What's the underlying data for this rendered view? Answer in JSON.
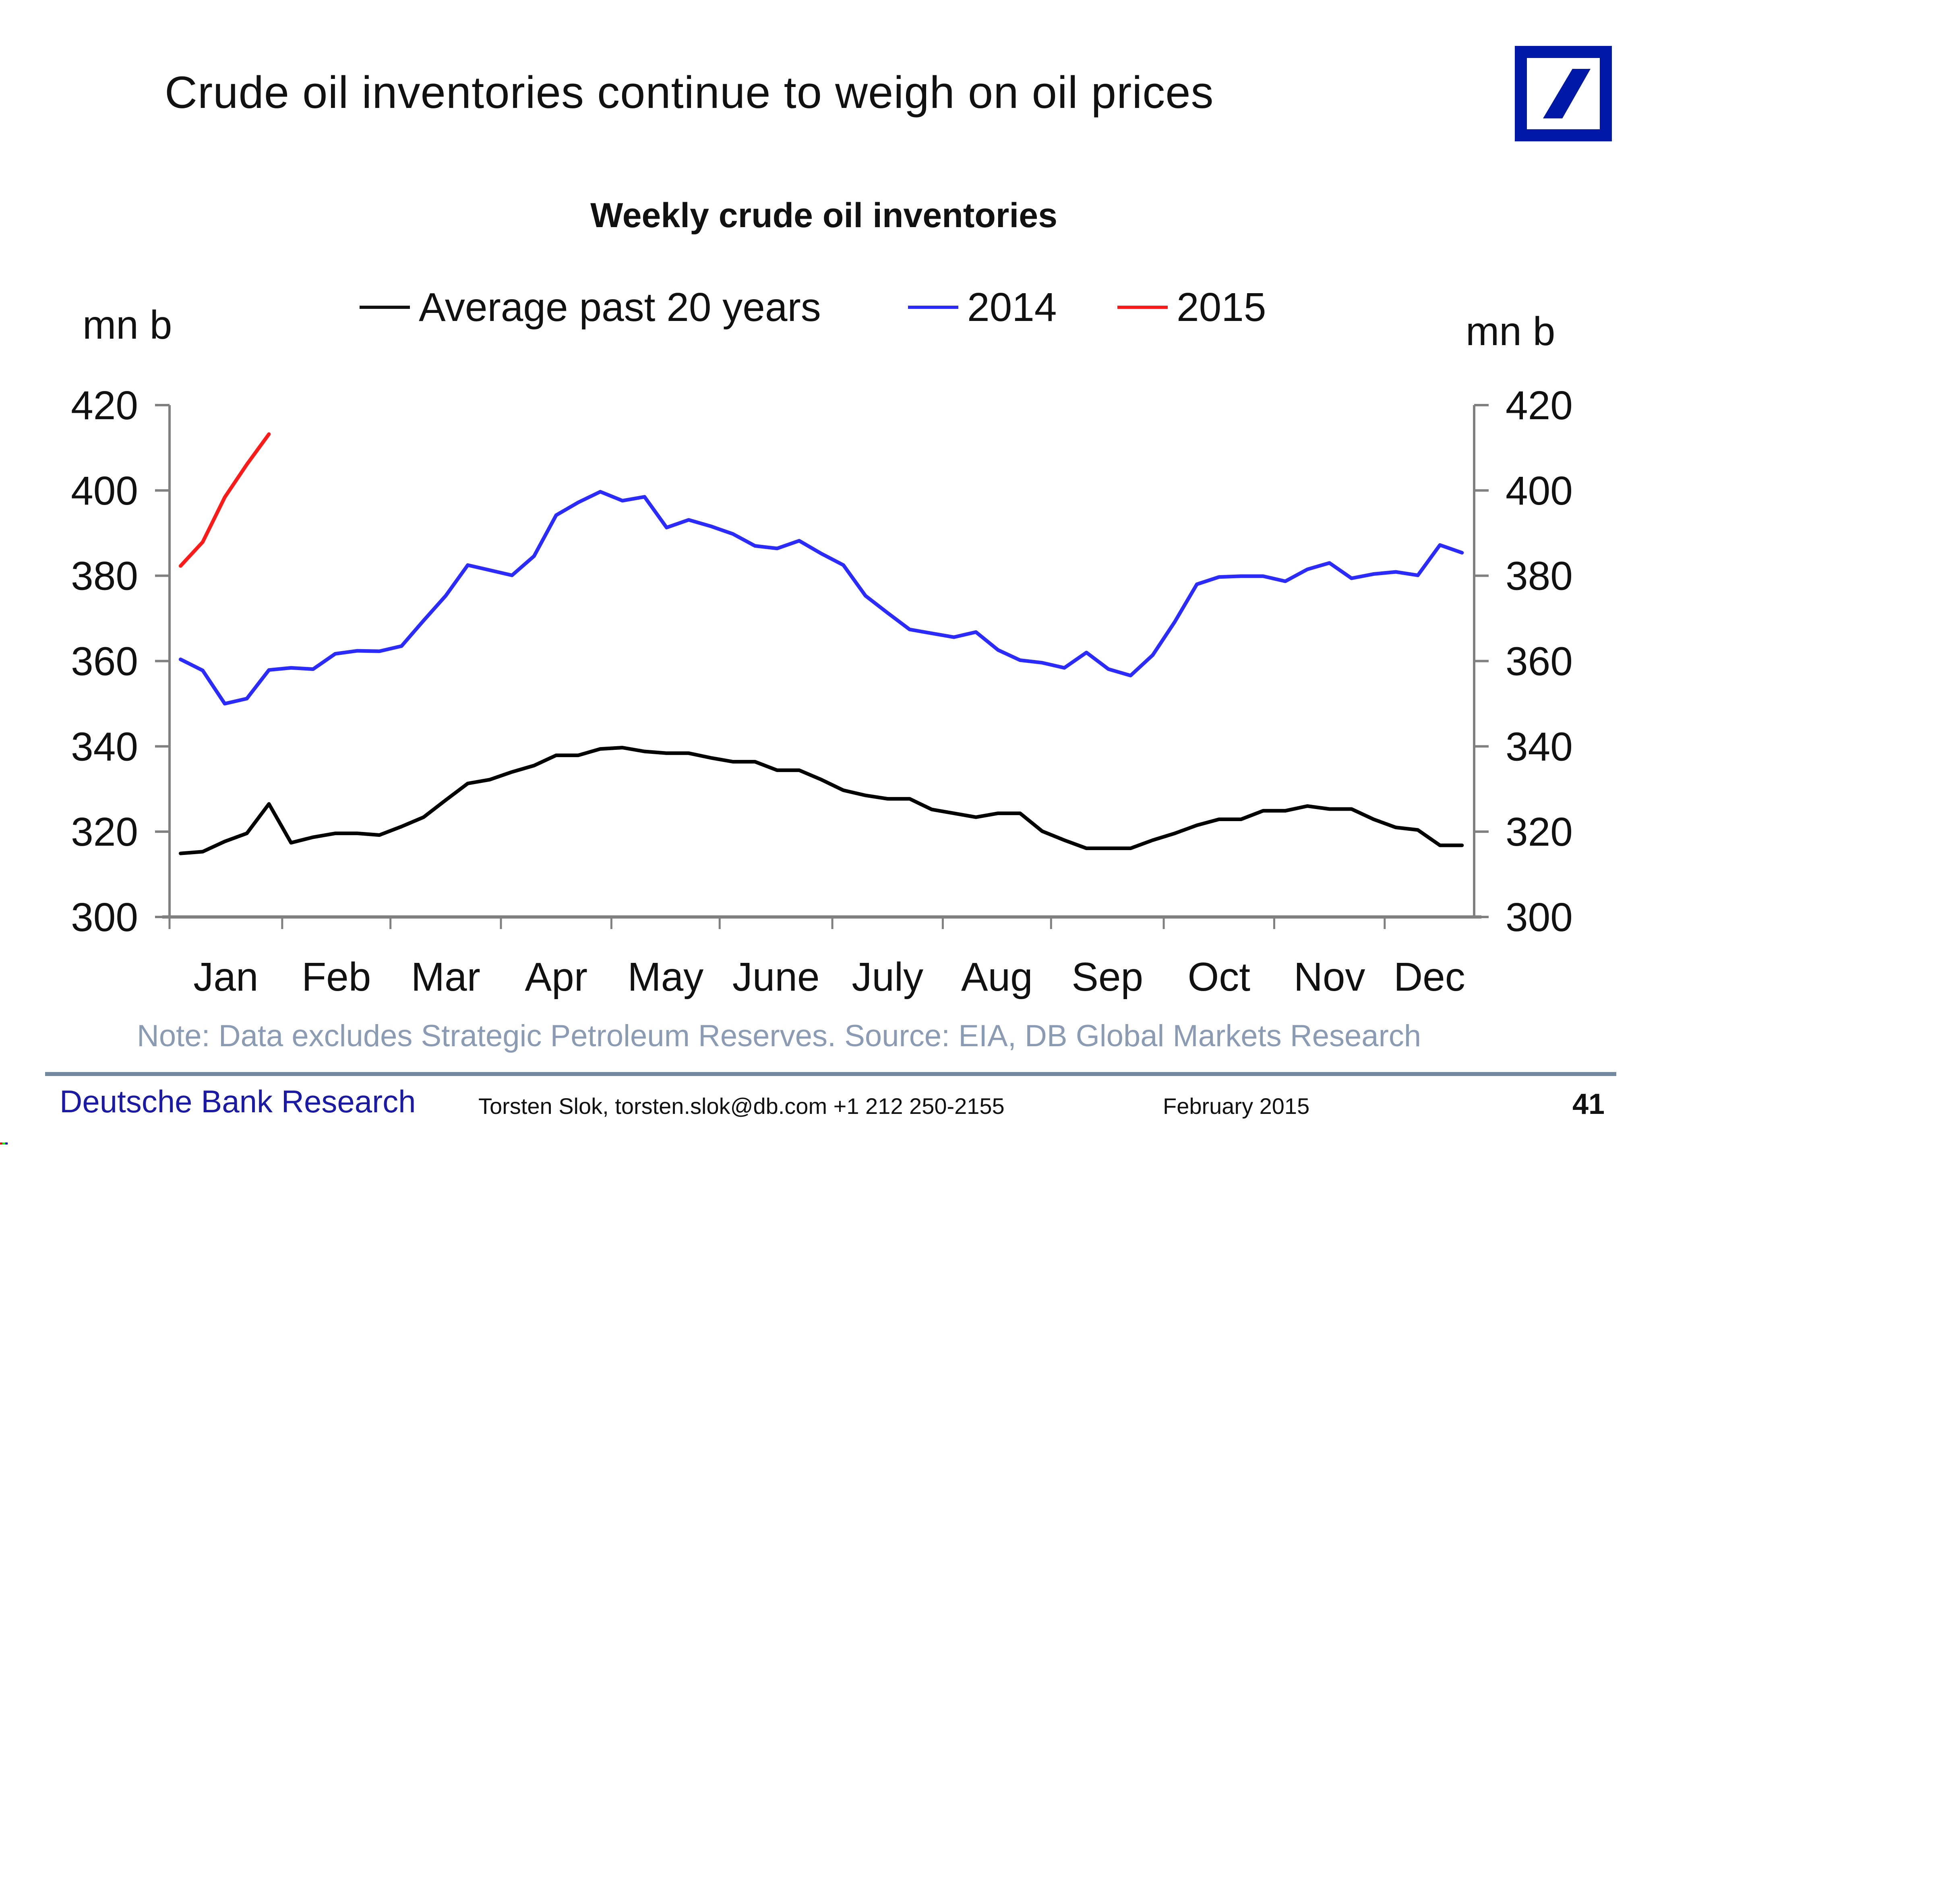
{
  "slide": {
    "title": "Crude oil inventories continue to weigh on oil prices",
    "logo_icon": "deutsche-bank-slash-logo",
    "brand_color": "#0018a8"
  },
  "chart_data": {
    "type": "line",
    "title": "Weekly crude oil inventories",
    "xlabel": "",
    "ylabel_left": "mn b",
    "ylabel_right": "mn b",
    "ylim": [
      300,
      420
    ],
    "yticks": [
      300,
      320,
      340,
      360,
      380,
      400,
      420
    ],
    "ytick_labels": [
      "300",
      "320",
      "340",
      "360",
      "380",
      "400",
      "420"
    ],
    "x_unit": "week index (0 = first week of January)",
    "x_domain": [
      -0.5,
      58.55
    ],
    "month_boundaries": [
      -0.5,
      4.6,
      9.5,
      14.5,
      19.5,
      24.4,
      29.5,
      34.5,
      39.4,
      44.5,
      49.5,
      54.5,
      58.55
    ],
    "categories": [
      "Jan",
      "Feb",
      "Mar",
      "Apr",
      "May",
      "June",
      "July",
      "Aug",
      "Sep",
      "Oct",
      "Nov",
      "Dec"
    ],
    "grid": false,
    "legend_position": "top-center",
    "series": [
      {
        "name": "Average past 20 years",
        "color": "#000000",
        "values": [
          314.9,
          315.3,
          317.7,
          319.6,
          326.5,
          317.4,
          318.7,
          319.6,
          319.6,
          319.2,
          321.2,
          323.4,
          327.4,
          331.3,
          332.2,
          334.0,
          335.5,
          337.9,
          337.9,
          339.4,
          339.7,
          338.8,
          338.4,
          338.4,
          337.3,
          336.4,
          336.4,
          334.4,
          334.4,
          332.2,
          329.7,
          328.5,
          327.7,
          327.7,
          325.2,
          324.3,
          323.4,
          324.3,
          324.3,
          320.1,
          318.0,
          316.1,
          316.1,
          316.1,
          318.0,
          319.6,
          321.5,
          322.9,
          322.9,
          324.9,
          324.9,
          326.0,
          325.3,
          325.3,
          322.9,
          321.0,
          320.4,
          316.8,
          316.8
        ]
      },
      {
        "name": "2014",
        "color": "#2b2bff",
        "values": [
          360.4,
          357.8,
          350.0,
          351.2,
          357.9,
          358.4,
          358.1,
          361.7,
          362.4,
          362.3,
          363.5,
          369.5,
          375.3,
          382.5,
          381.3,
          380.1,
          384.6,
          394.2,
          397.2,
          399.7,
          397.6,
          398.5,
          391.3,
          393.1,
          391.6,
          389.8,
          387.0,
          386.4,
          388.2,
          385.2,
          382.5,
          375.3,
          371.3,
          367.4,
          366.5,
          365.6,
          366.8,
          362.6,
          360.2,
          359.6,
          358.4,
          362.0,
          358.1,
          356.6,
          361.4,
          369.2,
          378.0,
          379.7,
          379.9,
          379.9,
          378.7,
          381.5,
          383.0,
          379.4,
          380.4,
          380.9,
          380.1,
          387.2,
          385.4
        ]
      },
      {
        "name": "2015",
        "color": "#ff1a1a",
        "values": [
          382.3,
          387.9,
          398.4,
          406.1,
          413.2
        ]
      }
    ],
    "annotations": []
  },
  "note": "Note: Data excludes Strategic Petroleum Reserves. Source: EIA, DB Global Markets Research",
  "footer": {
    "brand": "Deutsche Bank Research",
    "contact": "Torsten Slok, torsten.slok@db.com  +1 212 250-2155",
    "date": "February 2015",
    "page_number": "41",
    "brand_color": "#1a1aa6"
  }
}
